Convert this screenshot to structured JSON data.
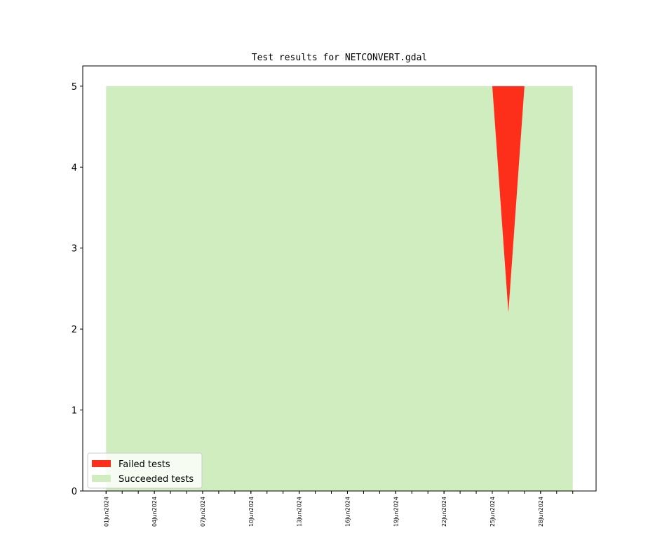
{
  "chart_data": {
    "type": "stacked_area",
    "title": "Test results for NETCONVERT.gdal",
    "x": [
      "2024-06-01",
      "2024-06-02",
      "2024-06-03",
      "2024-06-04",
      "2024-06-05",
      "2024-06-06",
      "2024-06-07",
      "2024-06-08",
      "2024-06-09",
      "2024-06-10",
      "2024-06-11",
      "2024-06-12",
      "2024-06-13",
      "2024-06-14",
      "2024-06-15",
      "2024-06-16",
      "2024-06-17",
      "2024-06-18",
      "2024-06-19",
      "2024-06-20",
      "2024-06-21",
      "2024-06-22",
      "2024-06-23",
      "2024-06-24",
      "2024-06-25",
      "2024-06-26",
      "2024-06-27",
      "2024-06-28",
      "2024-06-29",
      "2024-06-30"
    ],
    "series": [
      {
        "name": "Failed tests",
        "color": "#fd2f1b",
        "values": [
          0,
          0,
          0,
          0,
          0,
          0,
          0,
          0,
          0,
          0,
          0,
          0,
          0,
          0,
          0,
          0,
          0,
          0,
          0,
          0,
          0,
          0,
          0,
          0,
          0,
          2.8,
          0,
          0,
          0,
          0
        ]
      },
      {
        "name": "Succeeded tests",
        "color": "#cfedbf",
        "values": [
          5,
          5,
          5,
          5,
          5,
          5,
          5,
          5,
          5,
          5,
          5,
          5,
          5,
          5,
          5,
          5,
          5,
          5,
          5,
          5,
          5,
          5,
          5,
          5,
          5,
          2.2,
          5,
          5,
          5,
          5
        ]
      }
    ],
    "xlim": [
      "2024-05-30T13:12",
      "2024-07-01T10:48"
    ],
    "xticks": [
      {
        "value": "2024-06-01",
        "label": "01Jun2024"
      },
      {
        "value": "2024-06-04",
        "label": "04Jun2024"
      },
      {
        "value": "2024-06-07",
        "label": "07Jun2024"
      },
      {
        "value": "2024-06-10",
        "label": "10Jun2024"
      },
      {
        "value": "2024-06-13",
        "label": "13Jun2024"
      },
      {
        "value": "2024-06-16",
        "label": "16Jun2024"
      },
      {
        "value": "2024-06-19",
        "label": "19Jun2024"
      },
      {
        "value": "2024-06-22",
        "label": "22Jun2024"
      },
      {
        "value": "2024-06-25",
        "label": "25Jun2024"
      },
      {
        "value": "2024-06-28",
        "label": "28Jun2024"
      }
    ],
    "ylim": [
      0,
      5.25
    ],
    "yticks": [
      0,
      1,
      2,
      3,
      4,
      5
    ],
    "legend": "lower left"
  }
}
